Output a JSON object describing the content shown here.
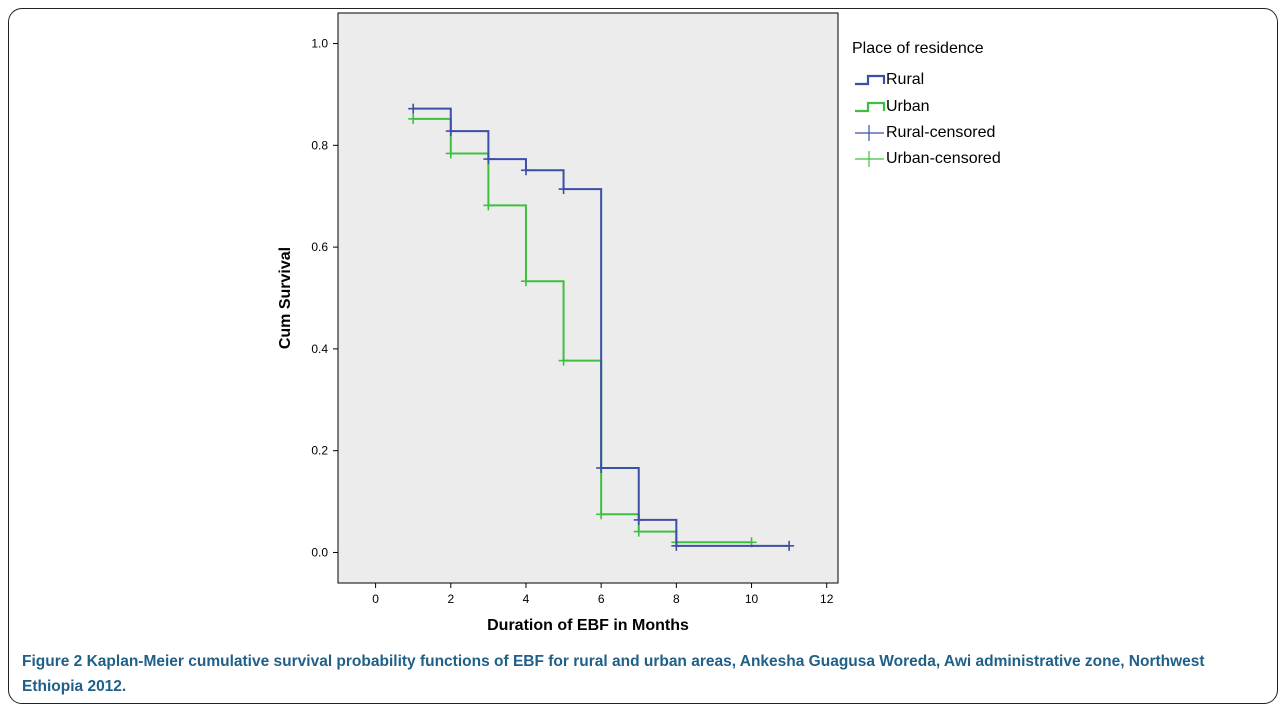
{
  "figure": {
    "label": "Figure 2",
    "caption": "Kaplan-Meier cumulative survival probability functions of EBF for rural and urban areas, Ankesha Guagusa Woreda, Awi administrative zone, Northwest Ethiopia 2012."
  },
  "chart_data": {
    "type": "line",
    "subtype": "kaplan-meier-step",
    "xlabel": "Duration of EBF in Months",
    "ylabel": "Cum Survival",
    "xlim": [
      -1,
      12.3
    ],
    "ylim": [
      -0.06,
      1.06
    ],
    "x_ticks": [
      0,
      2,
      4,
      6,
      8,
      10,
      12
    ],
    "y_ticks": [
      0.0,
      0.2,
      0.4,
      0.6,
      0.8,
      1.0
    ],
    "x_tick_labels": [
      "0",
      "2",
      "4",
      "6",
      "8",
      "10",
      "12"
    ],
    "y_tick_labels": [
      "0.0",
      "0.2",
      "0.4",
      "0.6",
      "0.8",
      "1.0"
    ],
    "grid": false,
    "plot_background": "#ececec",
    "legend": {
      "title": "Place of residence",
      "placement": "right",
      "entries": [
        "Rural",
        "Urban",
        "Rural-censored",
        "Urban-censored"
      ]
    },
    "series": [
      {
        "name": "Rural",
        "color": "#3c4fa6",
        "x": [
          1,
          2,
          3,
          4,
          5,
          6,
          7,
          8,
          11
        ],
        "y": [
          0.872,
          0.828,
          0.773,
          0.751,
          0.714,
          0.166,
          0.064,
          0.013,
          0.013
        ],
        "censored": [
          [
            1,
            0.872
          ],
          [
            2,
            0.828
          ],
          [
            3,
            0.773
          ],
          [
            4,
            0.751
          ],
          [
            5,
            0.714
          ],
          [
            6,
            0.166
          ],
          [
            7,
            0.064
          ],
          [
            8,
            0.013
          ],
          [
            11,
            0.013
          ]
        ]
      },
      {
        "name": "Urban",
        "color": "#3fbf3f",
        "x": [
          1,
          2,
          3,
          4,
          5,
          6,
          7,
          8,
          10
        ],
        "y": [
          0.852,
          0.784,
          0.682,
          0.533,
          0.377,
          0.075,
          0.041,
          0.02,
          0.02
        ],
        "censored": [
          [
            1,
            0.852
          ],
          [
            2,
            0.784
          ],
          [
            3,
            0.682
          ],
          [
            4,
            0.533
          ],
          [
            5,
            0.377
          ],
          [
            6,
            0.075
          ],
          [
            7,
            0.041
          ],
          [
            8,
            0.02
          ],
          [
            10,
            0.02
          ]
        ]
      }
    ]
  }
}
